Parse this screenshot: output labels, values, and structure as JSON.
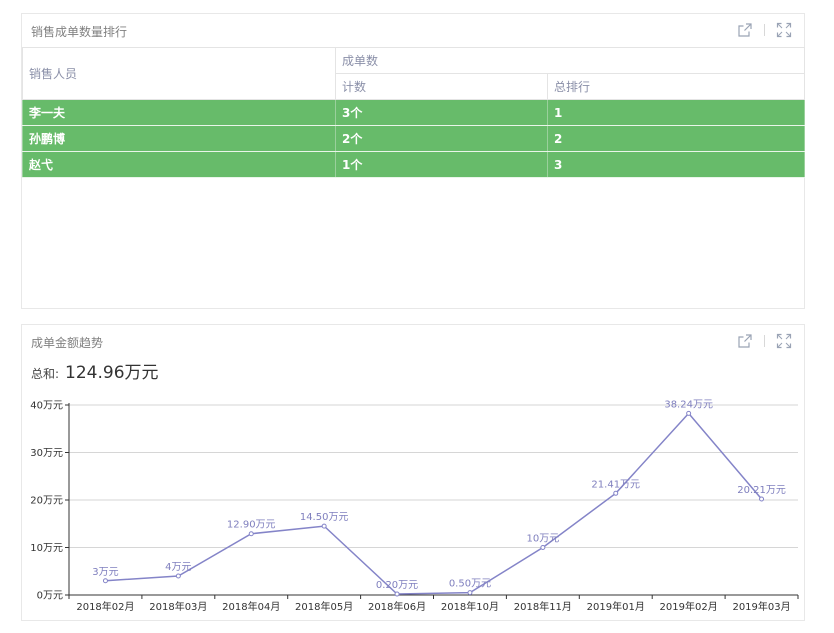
{
  "ranking_panel": {
    "title": "销售成单数量排行",
    "table": {
      "col_salesperson": "销售人员",
      "group_header": "成单数",
      "col_count": "计数",
      "col_rank": "总排行",
      "rows": [
        {
          "name": "李一夫",
          "count": "3个",
          "rank": "1"
        },
        {
          "name": "孙鹏博",
          "count": "2个",
          "rank": "2"
        },
        {
          "name": "赵弋",
          "count": "1个",
          "rank": "3"
        }
      ]
    },
    "icons": [
      "external-link-icon",
      "fullscreen-icon"
    ]
  },
  "trend_panel": {
    "title": "成单金额趋势",
    "sum_label": "总和:",
    "sum_value": "124.96万元",
    "icons": [
      "external-link-icon",
      "fullscreen-icon"
    ],
    "line_color": "#8484c8",
    "label_color": "#7f7fbe"
  },
  "chart_data": {
    "type": "line",
    "title": "",
    "xlabel": "",
    "ylabel": "",
    "x": [
      "2018年02月",
      "2018年03月",
      "2018年04月",
      "2018年05月",
      "2018年06月",
      "2018年10月",
      "2018年11月",
      "2019年01月",
      "2019年02月",
      "2019年03月"
    ],
    "series": [
      {
        "values": [
          3,
          4,
          12.9,
          14.5,
          0.2,
          0.5,
          10,
          21.41,
          38.24,
          20.21
        ],
        "labels": [
          "3万元",
          "4万元",
          "12.90万元",
          "14.50万元",
          "0.20万元",
          "0.50万元",
          "10万元",
          "21.41万元",
          "38.24万元",
          "20.21万元"
        ]
      }
    ],
    "ylim": [
      0,
      40
    ],
    "yticks": [
      0,
      10,
      20,
      30,
      40
    ],
    "ytick_labels": [
      "0万元",
      "10万元",
      "20万元",
      "30万元",
      "40万元"
    ],
    "grid": true,
    "legend": "none"
  }
}
